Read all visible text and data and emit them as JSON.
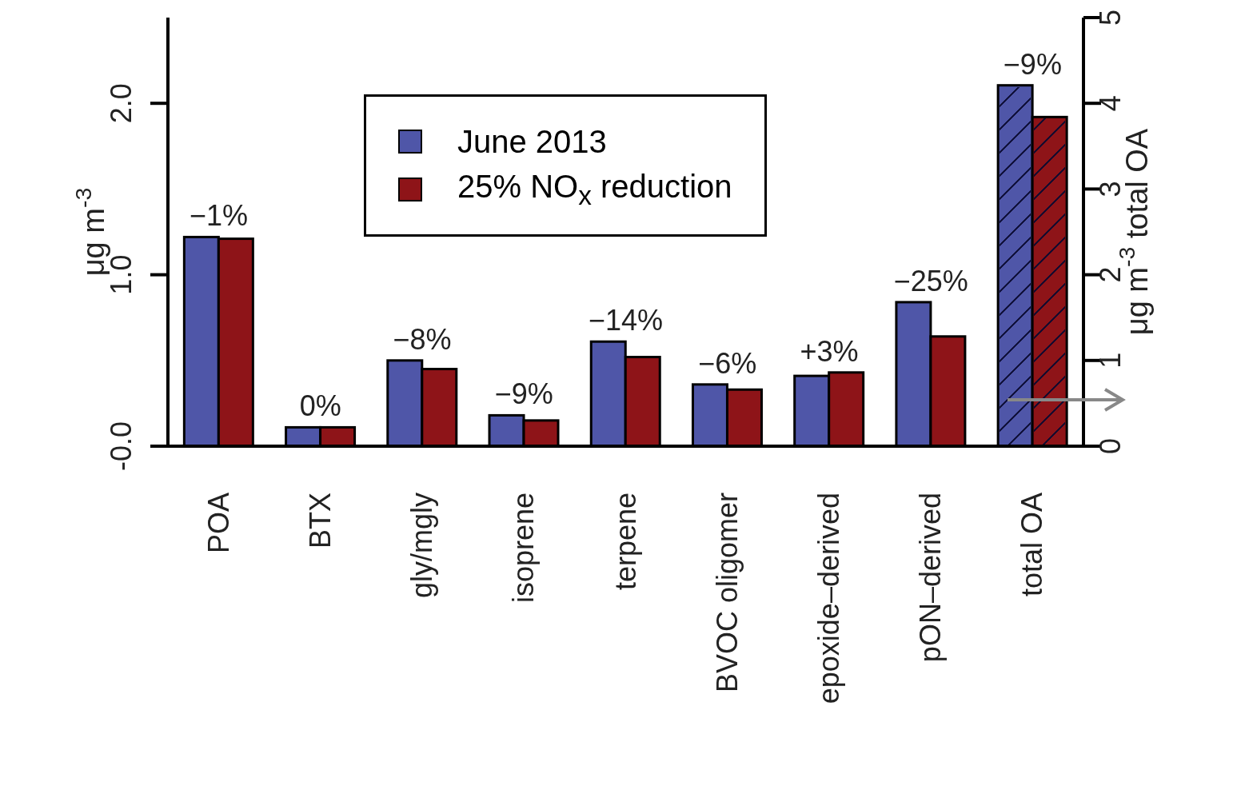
{
  "chart_data": {
    "type": "bar",
    "categories": [
      "POA",
      "BTX",
      "gly/mgly",
      "isoprene",
      "terpene",
      "BVOC oligomer",
      "epoxide–derived",
      "pON–derived",
      "total OA"
    ],
    "series": [
      {
        "name": "June 2013",
        "color": "#4f56a8",
        "values": [
          1.22,
          0.11,
          0.5,
          0.18,
          0.61,
          0.36,
          0.41,
          0.84,
          null
        ]
      },
      {
        "name": "25% NO$_{x}$ reduction",
        "color": "#8e1418",
        "values": [
          1.21,
          0.11,
          0.45,
          0.15,
          0.52,
          0.33,
          0.43,
          0.64,
          null
        ]
      },
      {
        "color": "#4f56a8",
        "axis": "y2",
        "values": [
          null,
          null,
          null,
          null,
          null,
          null,
          null,
          null,
          4.21
        ]
      },
      {
        "color": "#8e1418",
        "axis": "y2",
        "values": [
          null,
          null,
          null,
          null,
          null,
          null,
          null,
          null,
          3.84
        ]
      }
    ],
    "ylabel": "μg m$^{-3}$",
    "y2label": "μg m$^{-3}$ total OA",
    "ylim": [
      0,
      2.5
    ],
    "yticks": [
      {
        "value": 0,
        "label": "-0.0"
      },
      {
        "value": 1,
        "label": "1.0"
      },
      {
        "value": 2,
        "label": "2.0"
      }
    ],
    "y2lim": [
      0,
      5
    ],
    "y2ticks": [
      0,
      1,
      2,
      3,
      4,
      5
    ],
    "annotations": [
      "−1%",
      "0%",
      "−8%",
      "−9%",
      "−14%",
      "−6%",
      "+3%",
      "−25%",
      "−9%"
    ],
    "legend": "top",
    "grid": false
  }
}
